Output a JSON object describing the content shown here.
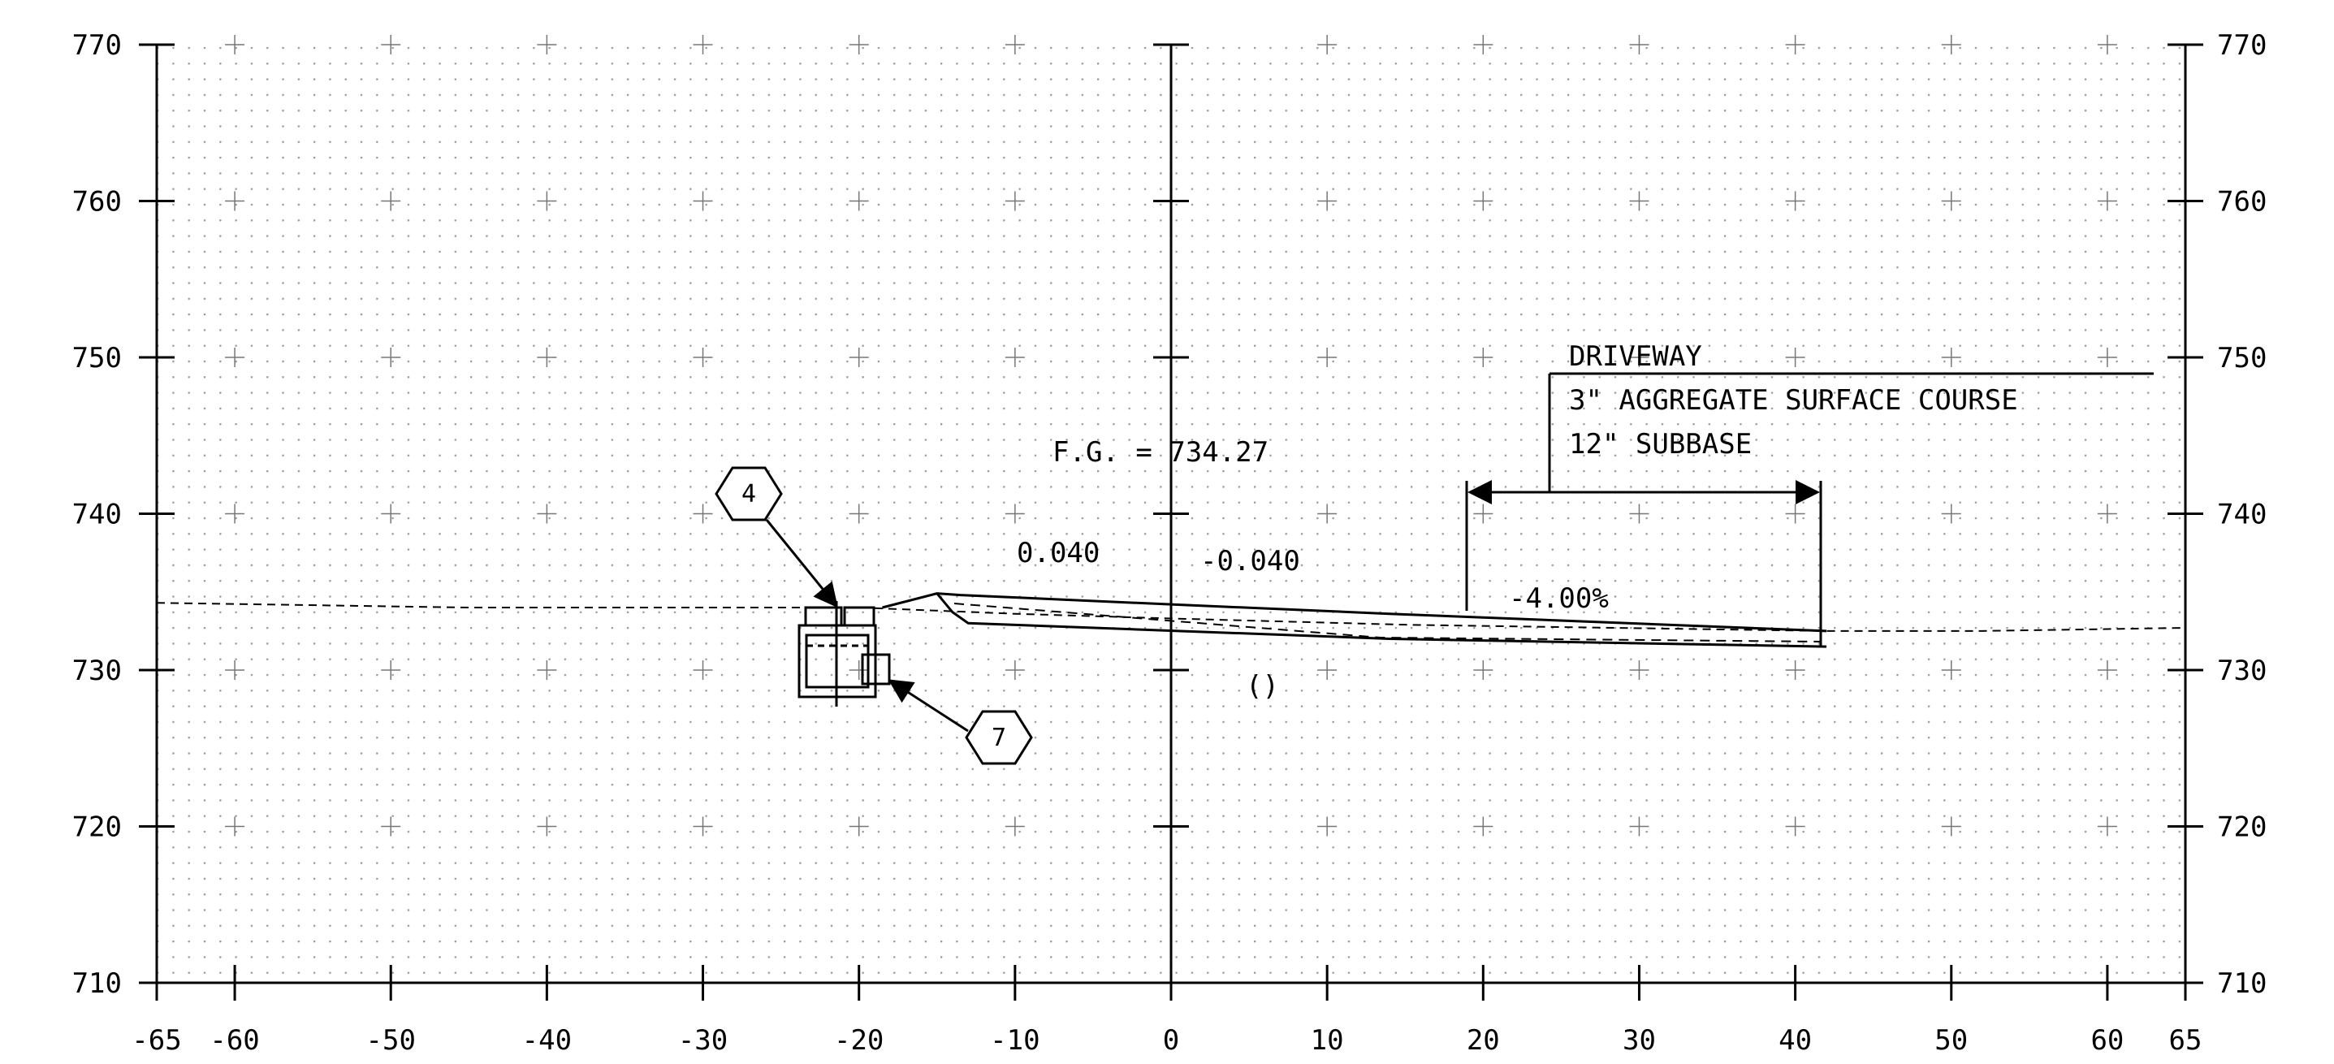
{
  "sheet": {
    "x_axis": {
      "min": -65,
      "max": 65,
      "tick_labels": [
        "-65",
        "-60",
        "-50",
        "-40",
        "-30",
        "-20",
        "-10",
        "0",
        "10",
        "20",
        "30",
        "40",
        "50",
        "60",
        "65"
      ],
      "tick_values": [
        -65,
        -60,
        -50,
        -40,
        -30,
        -20,
        -10,
        0,
        10,
        20,
        30,
        40,
        50,
        60,
        65
      ]
    },
    "y_axis": {
      "min": 710,
      "max": 770,
      "tick_labels": [
        "710",
        "720",
        "730",
        "740",
        "750",
        "760",
        "770"
      ],
      "tick_values": [
        710,
        720,
        730,
        740,
        750,
        760,
        770
      ]
    },
    "grid": true
  },
  "annotations": {
    "fg_label": "F.G. = 734.27",
    "slope_left": "0.040",
    "slope_right": "-0.040",
    "driveway_grade": "-4.00%",
    "driveway_note_line1": "DRIVEWAY",
    "driveway_note_line2": "3\" AGGREGATE SURFACE COURSE",
    "driveway_note_line3": "12\" SUBBASE",
    "small_mark": "()"
  },
  "callouts": [
    {
      "label": "4"
    },
    {
      "label": "7"
    }
  ],
  "profile": {
    "existing_ground": [
      [
        -65,
        734.3
      ],
      [
        -45,
        734.0
      ],
      [
        -20,
        734.0
      ],
      [
        -10,
        733.6
      ],
      [
        0,
        733.3
      ],
      [
        15,
        732.9
      ],
      [
        42,
        732.5
      ],
      [
        52,
        732.5
      ],
      [
        65,
        732.7
      ]
    ],
    "pavement_top": [
      [
        -18.5,
        734.0
      ],
      [
        -15,
        734.9
      ],
      [
        -13.5,
        734.8
      ],
      [
        0,
        734.2
      ],
      [
        14,
        733.6
      ],
      [
        42,
        732.5
      ]
    ],
    "pavement_base": [
      [
        -15,
        734.9
      ],
      [
        -14,
        733.7
      ],
      [
        -13,
        733.0
      ],
      [
        14,
        732.0
      ],
      [
        42,
        731.5
      ]
    ]
  }
}
